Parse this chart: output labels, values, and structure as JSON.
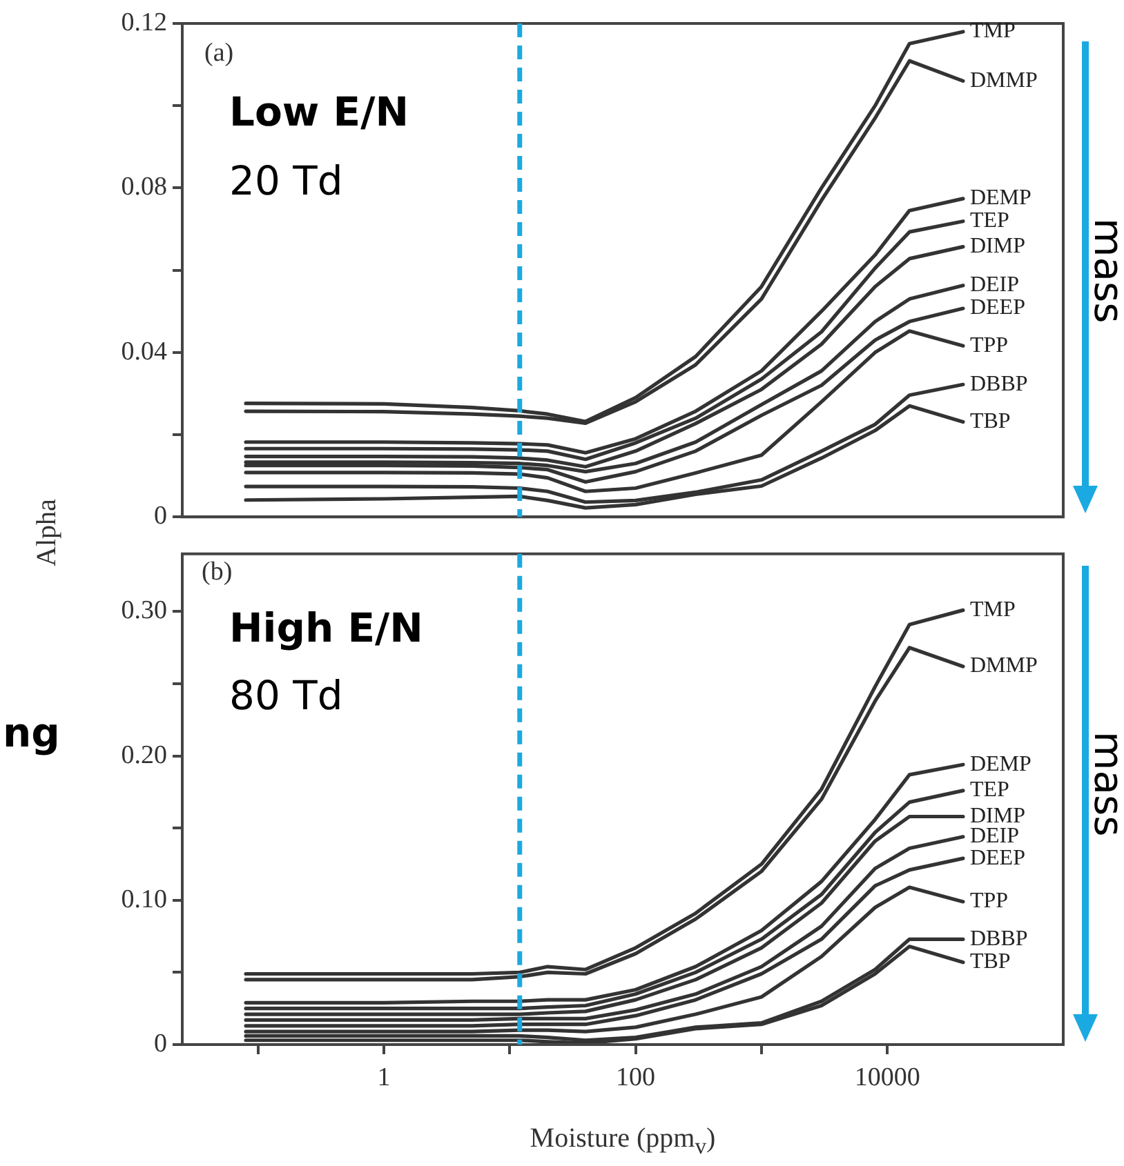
{
  "chart_data": [
    {
      "type": "line",
      "ylabel": "Alpha",
      "log": "x",
      "xlim": [
        0.025,
        250000
      ],
      "ylim": [
        0,
        0.12
      ],
      "yticks": [
        0,
        {
          "value": 0.02,
          "label": null
        },
        {
          "value": 0.04,
          "label": "0.04"
        },
        {
          "value": 0.06,
          "label": null
        },
        {
          "value": 0.08,
          "label": "0.08"
        },
        {
          "value": 0.1,
          "label": null
        },
        {
          "value": 0.12,
          "label": "0.12"
        }
      ],
      "tick_labels": "y",
      "x": [
        0.08,
        1,
        5,
        12,
        20,
        40,
        100,
        300,
        1000,
        3000,
        8000,
        15000,
        40000
      ],
      "ref_lines": [
        {
          "axis": "x",
          "value": 12,
          "color": "#1ba9e1",
          "line_style": "dashed"
        }
      ],
      "annotations": [
        "(a)",
        "Low E/N",
        "20 Td",
        "mass"
      ],
      "series": [
        {
          "name": "TMP",
          "color": "#333333",
          "values": [
            0.0276,
            0.0275,
            0.0266,
            0.0258,
            0.025,
            0.0232,
            0.029,
            0.039,
            0.056,
            0.08,
            0.1,
            0.1151,
            0.118
          ]
        },
        {
          "name": "DMMP",
          "color": "#333333",
          "values": [
            0.0257,
            0.0256,
            0.025,
            0.0245,
            0.024,
            0.0228,
            0.028,
            0.037,
            0.053,
            0.077,
            0.097,
            0.1109,
            0.106
          ]
        },
        {
          "name": "DEMP",
          "color": "#333333",
          "values": [
            0.0182,
            0.0182,
            0.018,
            0.0178,
            0.0175,
            0.0156,
            0.019,
            0.0257,
            0.0355,
            0.05,
            0.0637,
            0.0745,
            0.0774
          ]
        },
        {
          "name": "TEP",
          "color": "#333333",
          "values": [
            0.0166,
            0.0166,
            0.0165,
            0.0163,
            0.016,
            0.014,
            0.018,
            0.024,
            0.0335,
            0.045,
            0.0605,
            0.0693,
            0.0719
          ]
        },
        {
          "name": "DIMP",
          "color": "#333333",
          "values": [
            0.0147,
            0.0147,
            0.0146,
            0.0143,
            0.0138,
            0.0122,
            0.016,
            0.0227,
            0.031,
            0.042,
            0.056,
            0.0628,
            0.0657
          ]
        },
        {
          "name": "DEIP",
          "color": "#333333",
          "values": [
            0.0133,
            0.0133,
            0.0132,
            0.013,
            0.0125,
            0.011,
            0.013,
            0.0182,
            0.0273,
            0.0355,
            0.0475,
            0.053,
            0.0563
          ]
        },
        {
          "name": "DEEP",
          "color": "#333333",
          "values": [
            0.0125,
            0.0125,
            0.0124,
            0.012,
            0.0115,
            0.0085,
            0.011,
            0.016,
            0.0247,
            0.032,
            0.043,
            0.0475,
            0.0507
          ]
        },
        {
          "name": "TPP",
          "color": "#333333",
          "values": [
            0.0108,
            0.0108,
            0.0107,
            0.0104,
            0.0095,
            0.0062,
            0.007,
            0.0107,
            0.015,
            0.028,
            0.04,
            0.0452,
            0.0416
          ]
        },
        {
          "name": "DBBP",
          "color": "#333333",
          "values": [
            0.0074,
            0.0074,
            0.0073,
            0.007,
            0.0062,
            0.0036,
            0.004,
            0.006,
            0.009,
            0.016,
            0.0225,
            0.0296,
            0.0322
          ]
        },
        {
          "name": "TBP",
          "color": "#333333",
          "values": [
            0.0041,
            0.0044,
            0.0048,
            0.005,
            0.004,
            0.0022,
            0.003,
            0.0055,
            0.0075,
            0.0143,
            0.021,
            0.027,
            0.0231
          ]
        }
      ]
    },
    {
      "type": "line",
      "xlabel": "Moisture (ppm$_{v}$)",
      "log": "x",
      "xlim": [
        0.025,
        250000
      ],
      "ylim": [
        0,
        0.34
      ],
      "xticks": [
        {
          "value": 0.1,
          "label": null
        },
        1,
        {
          "value": 10,
          "label": null
        },
        100,
        {
          "value": 1000,
          "label": null
        },
        10000
      ],
      "yticks": [
        0,
        {
          "value": 0.05,
          "label": null
        },
        {
          "value": 0.1,
          "label": "0.10"
        },
        {
          "value": 0.15,
          "label": null
        },
        {
          "value": 0.2,
          "label": "0.20"
        },
        {
          "value": 0.25,
          "label": null
        },
        {
          "value": 0.3,
          "label": "0.30"
        }
      ],
      "x": [
        0.08,
        1,
        5,
        12,
        20,
        40,
        100,
        300,
        1000,
        3000,
        8000,
        15000,
        40000
      ],
      "ref_lines": [
        {
          "axis": "x",
          "value": 12,
          "color": "#1ba9e1",
          "line_style": "dashed"
        }
      ],
      "annotations": [
        "(b)",
        "High E/N",
        "80 Td",
        "mass",
        "ng"
      ],
      "series": [
        {
          "name": "TMP",
          "color": "#333333",
          "values": [
            0.049,
            0.049,
            0.049,
            0.05,
            0.054,
            0.052,
            0.067,
            0.091,
            0.125,
            0.177,
            0.248,
            0.291,
            0.301
          ]
        },
        {
          "name": "DMMP",
          "color": "#333333",
          "values": [
            0.045,
            0.045,
            0.045,
            0.047,
            0.05,
            0.049,
            0.063,
            0.087,
            0.12,
            0.17,
            0.238,
            0.275,
            0.262
          ]
        },
        {
          "name": "DEMP",
          "color": "#333333",
          "values": [
            0.029,
            0.029,
            0.03,
            0.03,
            0.031,
            0.031,
            0.038,
            0.054,
            0.079,
            0.113,
            0.156,
            0.187,
            0.194
          ]
        },
        {
          "name": "TEP",
          "color": "#333333",
          "values": [
            0.025,
            0.025,
            0.025,
            0.025,
            0.026,
            0.027,
            0.035,
            0.05,
            0.073,
            0.104,
            0.147,
            0.168,
            0.176
          ]
        },
        {
          "name": "DIMP",
          "color": "#333333",
          "values": [
            0.021,
            0.021,
            0.021,
            0.021,
            0.022,
            0.023,
            0.031,
            0.045,
            0.067,
            0.098,
            0.141,
            0.158,
            0.158
          ]
        },
        {
          "name": "DEIP",
          "color": "#333333",
          "values": [
            0.017,
            0.017,
            0.017,
            0.018,
            0.018,
            0.018,
            0.024,
            0.035,
            0.054,
            0.082,
            0.122,
            0.136,
            0.144
          ]
        },
        {
          "name": "DEEP",
          "color": "#333333",
          "values": [
            0.013,
            0.013,
            0.013,
            0.014,
            0.014,
            0.014,
            0.02,
            0.031,
            0.049,
            0.073,
            0.11,
            0.121,
            0.129
          ]
        },
        {
          "name": "TPP",
          "color": "#333333",
          "values": [
            0.009,
            0.009,
            0.009,
            0.01,
            0.01,
            0.009,
            0.012,
            0.021,
            0.033,
            0.061,
            0.095,
            0.109,
            0.099
          ]
        },
        {
          "name": "DBBP",
          "color": "#333333",
          "values": [
            0.006,
            0.006,
            0.006,
            0.006,
            0.005,
            0.003,
            0.005,
            0.012,
            0.015,
            0.03,
            0.052,
            0.073,
            0.073
          ]
        },
        {
          "name": "TBP",
          "color": "#333333",
          "values": [
            0.003,
            0.003,
            0.003,
            0.003,
            0.002,
            0.001,
            0.004,
            0.011,
            0.014,
            0.027,
            0.049,
            0.068,
            0.057
          ]
        }
      ]
    }
  ]
}
